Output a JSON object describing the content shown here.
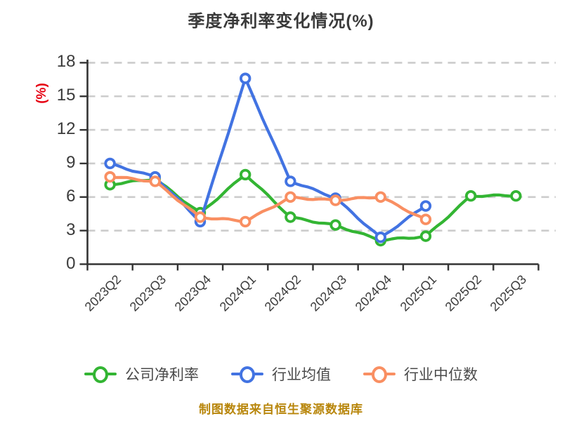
{
  "title": "季度净利率变化情况(%)",
  "footer": {
    "text": "制图数据来自恒生聚源数据库",
    "color": "#b8860b"
  },
  "colors": {
    "title_text": "#3a3a3a",
    "axis": "#333333",
    "gridline": "#cccccc",
    "tick_label": "#3b3b3b",
    "y_unit_label": "#e60012",
    "legend_text": "#4a4a4a",
    "footer_text": "#b8860b"
  },
  "chart_data": {
    "type": "line",
    "title": "季度净利率变化情况(%)",
    "ylabel": "(%)",
    "xlabel": "",
    "categories": [
      "2023Q2",
      "2023Q3",
      "2023Q4",
      "2024Q1",
      "2024Q2",
      "2024Q3",
      "2024Q4",
      "2025Q1",
      "2025Q2",
      "2025Q3"
    ],
    "yticks": [
      0,
      3,
      6,
      9,
      12,
      15,
      18
    ],
    "ylim": [
      0,
      18
    ],
    "grid": "horizontal-dashed",
    "legend_position": "bottom",
    "marker": "circle-white-fill",
    "series": [
      {
        "name": "公司净利率",
        "color": "#33b533",
        "values": [
          7.1,
          7.6,
          4.6,
          8.0,
          4.2,
          3.5,
          2.1,
          2.5,
          6.1,
          6.1
        ]
      },
      {
        "name": "行业均值",
        "color": "#4273e2",
        "values": [
          9.0,
          7.8,
          3.8,
          16.6,
          7.4,
          5.9,
          2.4,
          5.2,
          null,
          null
        ]
      },
      {
        "name": "行业中位数",
        "color": "#f98f62",
        "values": [
          7.8,
          7.4,
          4.2,
          3.8,
          6.0,
          5.7,
          6.0,
          4.0,
          null,
          null
        ]
      }
    ]
  }
}
